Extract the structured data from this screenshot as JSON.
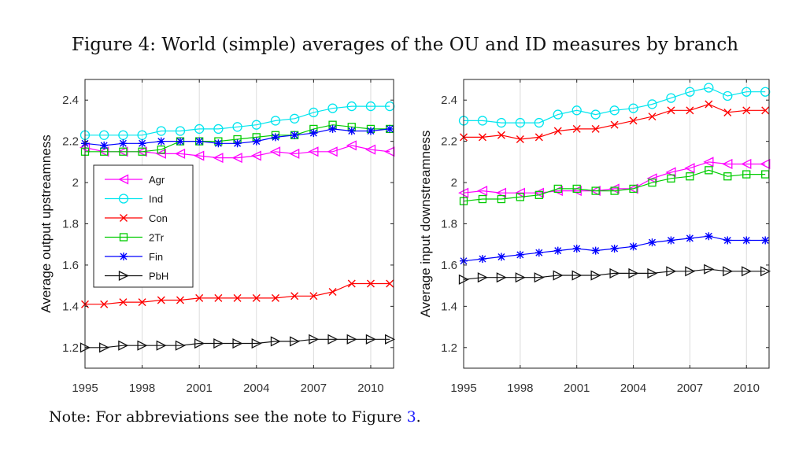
{
  "caption": "Figure 4: World (simple) averages of the OU and ID measures by branch",
  "note": {
    "text": "Note: For abbreviations see the note to Figure ",
    "ref": "3",
    "end": "."
  },
  "chart_data": [
    {
      "type": "line",
      "ylabel": "Average output upstreamness",
      "xlabel": "",
      "xlim": [
        1995,
        2011.2
      ],
      "ylim": [
        1.1,
        2.5
      ],
      "xticks": [
        1995,
        1998,
        2001,
        2004,
        2007,
        2010
      ],
      "yticks": [
        1.2,
        1.4,
        1.6,
        1.8,
        2,
        2.2,
        2.4
      ],
      "grid": "vertical",
      "legend": "left-middle",
      "x": [
        1995,
        1996,
        1997,
        1998,
        1999,
        2000,
        2001,
        2002,
        2003,
        2004,
        2005,
        2006,
        2007,
        2008,
        2009,
        2010,
        2011
      ],
      "series": [
        {
          "name": "Agr",
          "color": "#ff00ff",
          "marker": "triangle-left",
          "values": [
            2.17,
            2.15,
            2.15,
            2.15,
            2.14,
            2.14,
            2.13,
            2.12,
            2.12,
            2.13,
            2.15,
            2.14,
            2.15,
            2.15,
            2.18,
            2.16,
            2.15
          ]
        },
        {
          "name": "Ind",
          "color": "#00e5ee",
          "marker": "circle",
          "values": [
            2.23,
            2.23,
            2.23,
            2.23,
            2.25,
            2.25,
            2.26,
            2.26,
            2.27,
            2.28,
            2.3,
            2.31,
            2.34,
            2.36,
            2.37,
            2.37,
            2.37
          ]
        },
        {
          "name": "Con",
          "color": "#ff0000",
          "marker": "x",
          "values": [
            1.41,
            1.41,
            1.42,
            1.42,
            1.43,
            1.43,
            1.44,
            1.44,
            1.44,
            1.44,
            1.44,
            1.45,
            1.45,
            1.47,
            1.51,
            1.51,
            1.51
          ]
        },
        {
          "name": "2Tr",
          "color": "#00cc00",
          "marker": "square",
          "values": [
            2.15,
            2.15,
            2.15,
            2.15,
            2.16,
            2.2,
            2.2,
            2.2,
            2.21,
            2.22,
            2.23,
            2.23,
            2.26,
            2.28,
            2.27,
            2.26,
            2.26
          ]
        },
        {
          "name": "Fin",
          "color": "#0000ff",
          "marker": "asterisk",
          "values": [
            2.19,
            2.18,
            2.19,
            2.19,
            2.2,
            2.2,
            2.2,
            2.19,
            2.19,
            2.2,
            2.22,
            2.23,
            2.24,
            2.26,
            2.25,
            2.25,
            2.26
          ]
        },
        {
          "name": "PbH",
          "color": "#111111",
          "marker": "triangle-right",
          "values": [
            1.2,
            1.2,
            1.21,
            1.21,
            1.21,
            1.21,
            1.22,
            1.22,
            1.22,
            1.22,
            1.23,
            1.23,
            1.24,
            1.24,
            1.24,
            1.24,
            1.24
          ]
        }
      ]
    },
    {
      "type": "line",
      "ylabel": "Average input downstreamness",
      "xlabel": "",
      "xlim": [
        1995,
        2011.2
      ],
      "ylim": [
        1.1,
        2.5
      ],
      "xticks": [
        1995,
        1998,
        2001,
        2004,
        2007,
        2010
      ],
      "yticks": [
        1.2,
        1.4,
        1.6,
        1.8,
        2,
        2.2,
        2.4
      ],
      "grid": "vertical",
      "x": [
        1995,
        1996,
        1997,
        1998,
        1999,
        2000,
        2001,
        2002,
        2003,
        2004,
        2005,
        2006,
        2007,
        2008,
        2009,
        2010,
        2011
      ],
      "series": [
        {
          "name": "Agr",
          "color": "#ff00ff",
          "marker": "triangle-left",
          "values": [
            1.95,
            1.96,
            1.95,
            1.95,
            1.95,
            1.96,
            1.96,
            1.96,
            1.97,
            1.97,
            2.02,
            2.05,
            2.07,
            2.1,
            2.09,
            2.09,
            2.09
          ]
        },
        {
          "name": "Ind",
          "color": "#00e5ee",
          "marker": "circle",
          "values": [
            2.3,
            2.3,
            2.29,
            2.29,
            2.29,
            2.33,
            2.35,
            2.33,
            2.35,
            2.36,
            2.38,
            2.41,
            2.44,
            2.46,
            2.42,
            2.44,
            2.44
          ]
        },
        {
          "name": "Con",
          "color": "#ff0000",
          "marker": "x",
          "values": [
            2.22,
            2.22,
            2.23,
            2.21,
            2.22,
            2.25,
            2.26,
            2.26,
            2.28,
            2.3,
            2.32,
            2.35,
            2.35,
            2.38,
            2.34,
            2.35,
            2.35
          ]
        },
        {
          "name": "2Tr",
          "color": "#00cc00",
          "marker": "square",
          "values": [
            1.91,
            1.92,
            1.92,
            1.93,
            1.94,
            1.97,
            1.97,
            1.96,
            1.96,
            1.97,
            2.0,
            2.02,
            2.03,
            2.06,
            2.03,
            2.04,
            2.04
          ]
        },
        {
          "name": "Fin",
          "color": "#0000ff",
          "marker": "asterisk",
          "values": [
            1.62,
            1.63,
            1.64,
            1.65,
            1.66,
            1.67,
            1.68,
            1.67,
            1.68,
            1.69,
            1.71,
            1.72,
            1.73,
            1.74,
            1.72,
            1.72,
            1.72
          ]
        },
        {
          "name": "PbH",
          "color": "#111111",
          "marker": "triangle-right",
          "values": [
            1.53,
            1.54,
            1.54,
            1.54,
            1.54,
            1.55,
            1.55,
            1.55,
            1.56,
            1.56,
            1.56,
            1.57,
            1.57,
            1.58,
            1.57,
            1.57,
            1.57
          ]
        }
      ]
    }
  ]
}
